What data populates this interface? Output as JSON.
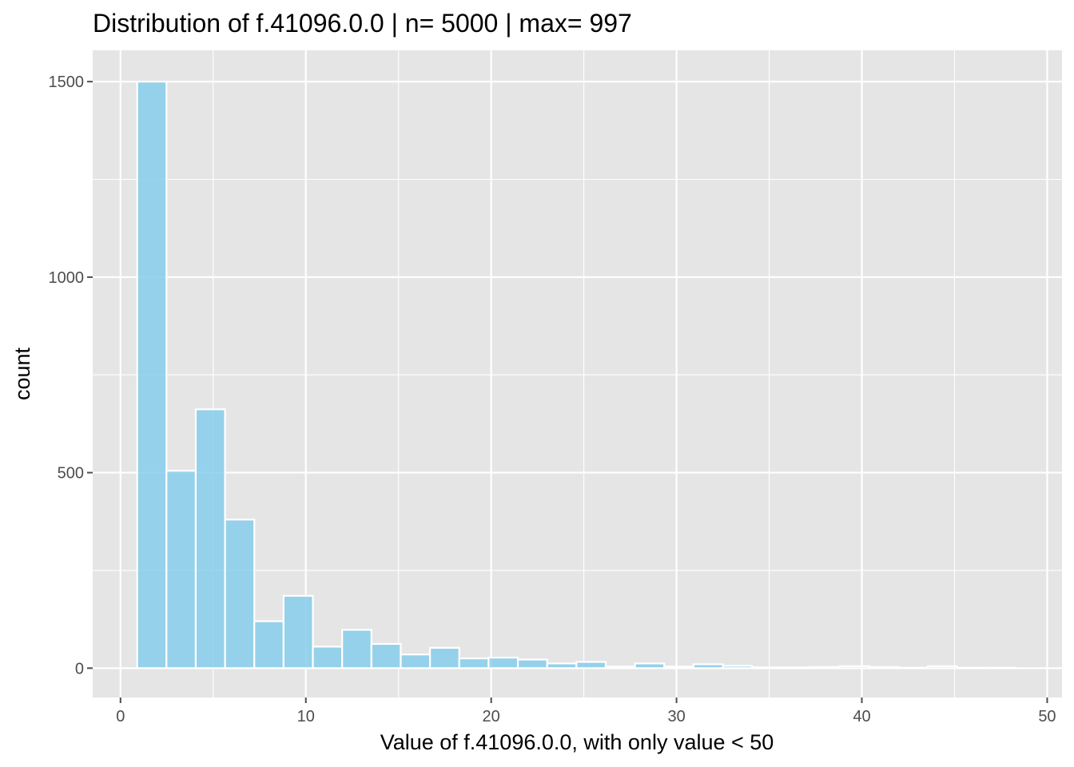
{
  "chart_data": {
    "type": "bar",
    "title": "Distribution of f.41096.0.0 | n= 5000  | max= 997",
    "xlabel": "Value of f.41096.0.0, with only value < 50",
    "ylabel": "count",
    "xlim": [
      -1.5,
      50.8
    ],
    "ylim": [
      -75,
      1580
    ],
    "x_ticks": [
      0,
      10,
      20,
      30,
      40,
      50
    ],
    "y_ticks": [
      0,
      500,
      1000,
      1500
    ],
    "grid": true,
    "bin_width": 1.58,
    "bin_starts": [
      0.9,
      2.48,
      4.06,
      5.64,
      7.22,
      8.8,
      10.38,
      11.96,
      13.54,
      15.12,
      16.7,
      18.28,
      19.86,
      21.44,
      23.02,
      24.6,
      26.18,
      27.76,
      29.34,
      30.92,
      32.5,
      34.08,
      35.66,
      37.24,
      38.82,
      40.4,
      41.98,
      43.56,
      45.14,
      46.72
    ],
    "values": [
      1500,
      505,
      662,
      380,
      120,
      185,
      55,
      98,
      62,
      35,
      52,
      25,
      27,
      22,
      12,
      16,
      4,
      12,
      4,
      10,
      6,
      2,
      2,
      3,
      5,
      3,
      1,
      5,
      1,
      1
    ],
    "colors": {
      "bar_fill": "#87CEEB",
      "bar_edge": "#FFFFFF",
      "panel_bg": "#E5E5E5",
      "grid": "#FFFFFF",
      "tick": "#4D4D4D"
    }
  }
}
